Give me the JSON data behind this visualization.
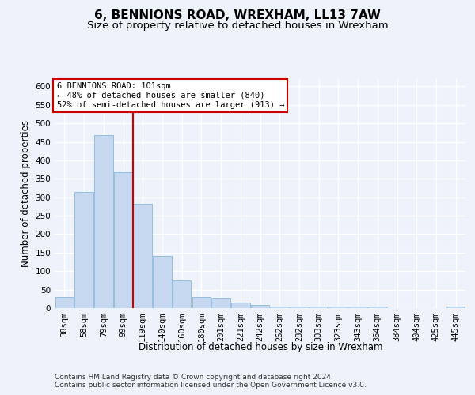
{
  "title": "6, BENNIONS ROAD, WREXHAM, LL13 7AW",
  "subtitle": "Size of property relative to detached houses in Wrexham",
  "xlabel": "Distribution of detached houses by size in Wrexham",
  "ylabel": "Number of detached properties",
  "categories": [
    "38sqm",
    "58sqm",
    "79sqm",
    "99sqm",
    "119sqm",
    "140sqm",
    "160sqm",
    "180sqm",
    "201sqm",
    "221sqm",
    "242sqm",
    "262sqm",
    "282sqm",
    "303sqm",
    "323sqm",
    "343sqm",
    "364sqm",
    "384sqm",
    "404sqm",
    "425sqm",
    "445sqm"
  ],
  "values": [
    31,
    315,
    468,
    367,
    283,
    141,
    75,
    31,
    28,
    15,
    8,
    5,
    5,
    5,
    5,
    5,
    5,
    0,
    0,
    0,
    5
  ],
  "bar_color": "#c5d8f0",
  "bar_edge_color": "#7aafd4",
  "highlight_bar_index": 3,
  "highlight_line_color": "#cc0000",
  "annotation_text": "6 BENNIONS ROAD: 101sqm\n← 48% of detached houses are smaller (840)\n52% of semi-detached houses are larger (913) →",
  "annotation_box_color": "#ffffff",
  "annotation_box_edge_color": "#cc0000",
  "footer_text": "Contains HM Land Registry data © Crown copyright and database right 2024.\nContains public sector information licensed under the Open Government Licence v3.0.",
  "ylim": [
    0,
    620
  ],
  "yticks": [
    0,
    50,
    100,
    150,
    200,
    250,
    300,
    350,
    400,
    450,
    500,
    550,
    600
  ],
  "bg_color": "#eef2fa",
  "plot_bg_color": "#eef2fa",
  "grid_color": "#ffffff",
  "title_fontsize": 11,
  "subtitle_fontsize": 9.5,
  "axis_label_fontsize": 8.5,
  "tick_fontsize": 7.5,
  "footer_fontsize": 6.5
}
